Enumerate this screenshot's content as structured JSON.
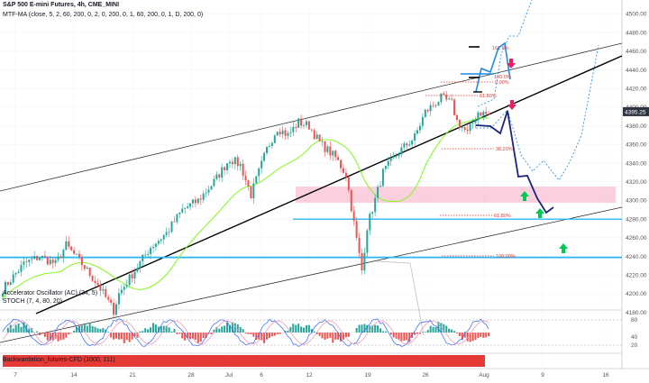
{
  "header": {
    "title": "S&P 500 E-mini Futures, 4h, CME_MINI",
    "indicator_line": "MTF-MA (close, 5, 2, 60, 200, 0, 2, 0, 200, 0, 1, 60, 200, 0, 1, D, 200, 0)"
  },
  "indicators": {
    "ac_label": "Accelerator Oscillator (AC) (34, 5)",
    "stoch_label": "STOCH (7, 4, 80, 20)",
    "backwardation_label": "Backwardation_futures-CFD (1000, 111)"
  },
  "price_badge": {
    "value": "4395.25",
    "color": "#2f3441"
  },
  "fib_labels": [
    "161.8%",
    "100.0%",
    "0.00%",
    "61.80%",
    "38.20%",
    "61.80%",
    "100.00%"
  ],
  "colors": {
    "up": "#26a69a",
    "down": "#ef5350",
    "wave": "#1a237e",
    "wave_alt": "#1e88e5",
    "support": "#29b6f6",
    "zone": "#f8bbd0",
    "arrow_up": "#00c853",
    "arrow_down": "#e91e63"
  },
  "chart_data": [
    {
      "type": "candlestick",
      "symbol": "S&P 500 E-mini Futures",
      "timeframe": "4h",
      "x_tick_labels": [
        "7",
        "14",
        "21",
        "28",
        "Jul",
        "6",
        "12",
        "19",
        "26",
        "Aug",
        "9",
        "16"
      ],
      "y_tick_labels": [
        "4500.00",
        "4480.00",
        "4460.00",
        "4440.00",
        "4420.00",
        "4400.00",
        "4380.00",
        "4360.00",
        "4340.00",
        "4320.00",
        "4300.00",
        "4280.00",
        "4260.00",
        "4240.00",
        "4220.00",
        "4200.00",
        "4180.00"
      ],
      "ylim": [
        4170,
        4510
      ],
      "last_price": 4395.25,
      "anchor_points": [
        [
          0,
          4205
        ],
        [
          8,
          4232
        ],
        [
          14,
          4240
        ],
        [
          20,
          4232
        ],
        [
          24,
          4252
        ],
        [
          30,
          4232
        ],
        [
          36,
          4210
        ],
        [
          42,
          4182
        ],
        [
          44,
          4200
        ],
        [
          50,
          4225
        ],
        [
          56,
          4250
        ],
        [
          62,
          4265
        ],
        [
          68,
          4290
        ],
        [
          74,
          4300
        ],
        [
          80,
          4320
        ],
        [
          86,
          4345
        ],
        [
          90,
          4338
        ],
        [
          94,
          4306
        ],
        [
          100,
          4355
        ],
        [
          104,
          4378
        ],
        [
          108,
          4370
        ],
        [
          112,
          4384
        ],
        [
          116,
          4380
        ],
        [
          120,
          4362
        ],
        [
          126,
          4346
        ],
        [
          130,
          4328
        ],
        [
          134,
          4258
        ],
        [
          136,
          4225
        ],
        [
          138,
          4272
        ],
        [
          144,
          4330
        ],
        [
          150,
          4352
        ],
        [
          156,
          4368
        ],
        [
          160,
          4395
        ],
        [
          166,
          4410
        ],
        [
          170,
          4404
        ],
        [
          172,
          4385
        ],
        [
          176,
          4372
        ],
        [
          180,
          4395
        ],
        [
          184,
          4392
        ]
      ],
      "support_lines": [
        4280,
        4239
      ],
      "target_zone": [
        4282,
        4304
      ]
    }
  ]
}
